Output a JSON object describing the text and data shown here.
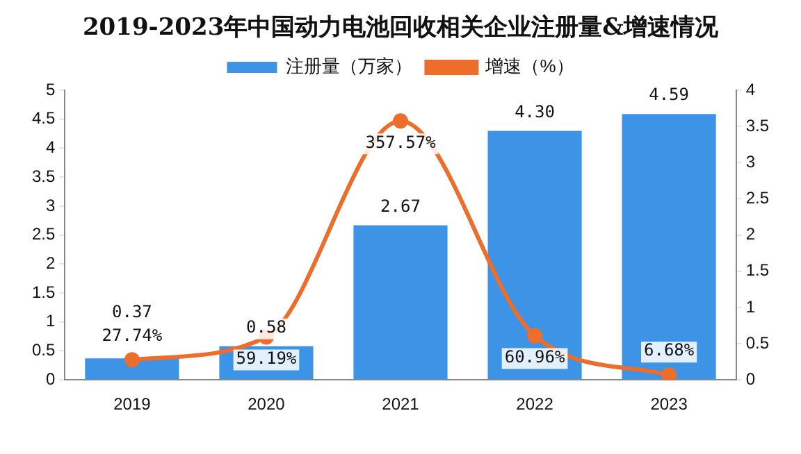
{
  "chart_data": {
    "type": "bar",
    "title": "2019-2023年中国动力电池回收相关企业注册量&增速情况",
    "categories": [
      "2019",
      "2020",
      "2021",
      "2022",
      "2023"
    ],
    "series": [
      {
        "name": "注册量（万家）",
        "color": "#3d94e6",
        "values": [
          0.37,
          0.58,
          2.67,
          4.3,
          4.59
        ],
        "value_labels": [
          "0.37",
          "0.58",
          "2.67",
          "4.30",
          "4.59"
        ]
      },
      {
        "type": "line",
        "name": "增速（%）",
        "color": "#ed6d2b",
        "axis": "y2",
        "marker": "circle",
        "values": [
          0.2774,
          0.5919,
          3.5757,
          0.6096,
          0.0668
        ],
        "value_labels": [
          "27.74%",
          "59.19%",
          "357.57%",
          "60.96%",
          "6.68%"
        ]
      }
    ],
    "ylim": [
      0,
      5
    ],
    "yticks": [
      0,
      0.5,
      1,
      1.5,
      2,
      2.5,
      3,
      3.5,
      4,
      4.5,
      5
    ],
    "y2lim": [
      0,
      4
    ],
    "y2ticks": [
      0,
      0.5,
      1,
      1.5,
      2,
      2.5,
      3,
      3.5,
      4
    ],
    "legend": "top"
  }
}
